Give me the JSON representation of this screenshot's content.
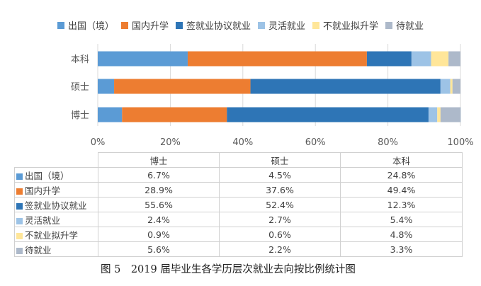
{
  "chart_data": {
    "type": "bar",
    "orientation": "horizontal",
    "stacked": true,
    "normalized": true,
    "categories": [
      "本科",
      "硕士",
      "博士"
    ],
    "series": [
      {
        "name": "出国（境）",
        "color": "#5b9bd5",
        "values": [
          24.8,
          4.5,
          6.7
        ],
        "labels": [
          "24.8%",
          "4.5%",
          "6.7%"
        ]
      },
      {
        "name": "国内升学",
        "color": "#ed7d31",
        "values": [
          49.4,
          37.6,
          28.9
        ],
        "labels": [
          "49.4%",
          "37.6%",
          "28.9%"
        ]
      },
      {
        "name": "签就业协议就业",
        "color": "#2e75b6",
        "values": [
          12.3,
          52.4,
          55.6
        ],
        "labels": [
          "12.3%",
          "52.4%",
          "55.6%"
        ]
      },
      {
        "name": "灵活就业",
        "color": "#9dc3e6",
        "values": [
          5.4,
          2.7,
          2.4
        ],
        "labels": [
          "5.4%",
          "2.7%",
          "2.4%"
        ]
      },
      {
        "name": "不就业拟升学",
        "color": "#ffe699",
        "values": [
          4.8,
          0.6,
          0.9
        ],
        "labels": [
          "4.8%",
          "0.6%",
          "0.9%"
        ]
      },
      {
        "name": "待就业",
        "color": "#adb9ca",
        "values": [
          3.3,
          2.2,
          5.6
        ],
        "labels": [
          "3.3%",
          "2.2%",
          "5.6%"
        ]
      }
    ],
    "xlim": [
      0,
      100
    ],
    "xticks": [
      "0%",
      "20%",
      "40%",
      "60%",
      "80%",
      "100%"
    ],
    "legend_position": "top",
    "grid": true,
    "table_columns": [
      "博士",
      "硕士",
      "本科"
    ]
  },
  "caption": "图 5　2019 届毕业生各学历层次就业去向按比例统计图"
}
